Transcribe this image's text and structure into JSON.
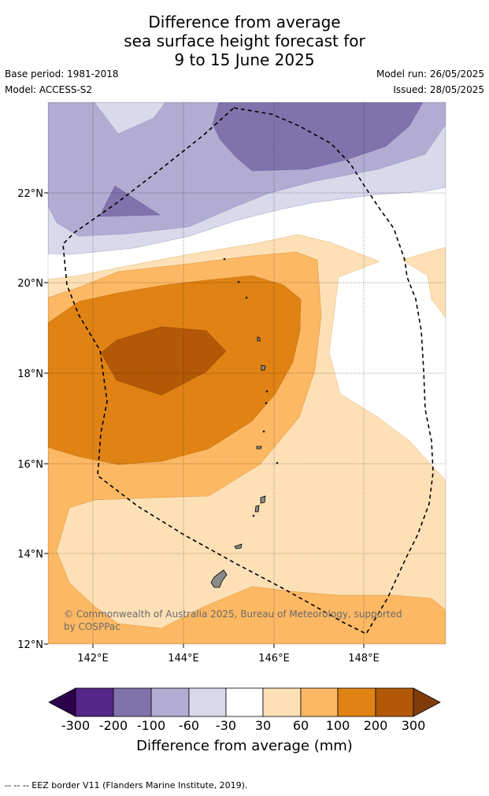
{
  "title": {
    "line1": "Difference from average",
    "line2": "sea surface height forecast for",
    "line3": "9 to 15 June 2025"
  },
  "meta": {
    "base_period": "Base period: 1981-2018",
    "model": "Model: ACCESS-S2",
    "model_run": "Model run: 26/05/2025",
    "issued": "Issued: 28/05/2025"
  },
  "map": {
    "lon_labels": [
      "142°E",
      "144°E",
      "146°E",
      "148°E"
    ],
    "lat_labels": [
      "22°N",
      "20°N",
      "18°N",
      "16°N",
      "14°N",
      "12°N"
    ],
    "credit": "© Commonwealth of Australia 2025, Bureau of Meteorology, supported by COSPPac",
    "border_style": "dashed"
  },
  "colorbar": {
    "label": "Difference from average (mm)",
    "ticks": [
      "-300",
      "-200",
      "-100",
      "-60",
      "-30",
      "30",
      "60",
      "100",
      "200",
      "300"
    ],
    "colors": {
      "below_-300": "#2d004b",
      "-300_-200": "#542788",
      "-200_-100": "#8073ac",
      "-100_-60": "#b2abd2",
      "-60_-30": "#d8daeb",
      "-30_30": "#ffffff",
      "30_60": "#fee0b6",
      "60_100": "#fdb863",
      "100_200": "#e08214",
      "200_300": "#b35806",
      "above_300": "#7f3b08"
    }
  },
  "footer": {
    "legend_text": "--  --  -- EEZ border V11 (Flanders Marine Institute, 2019)."
  }
}
